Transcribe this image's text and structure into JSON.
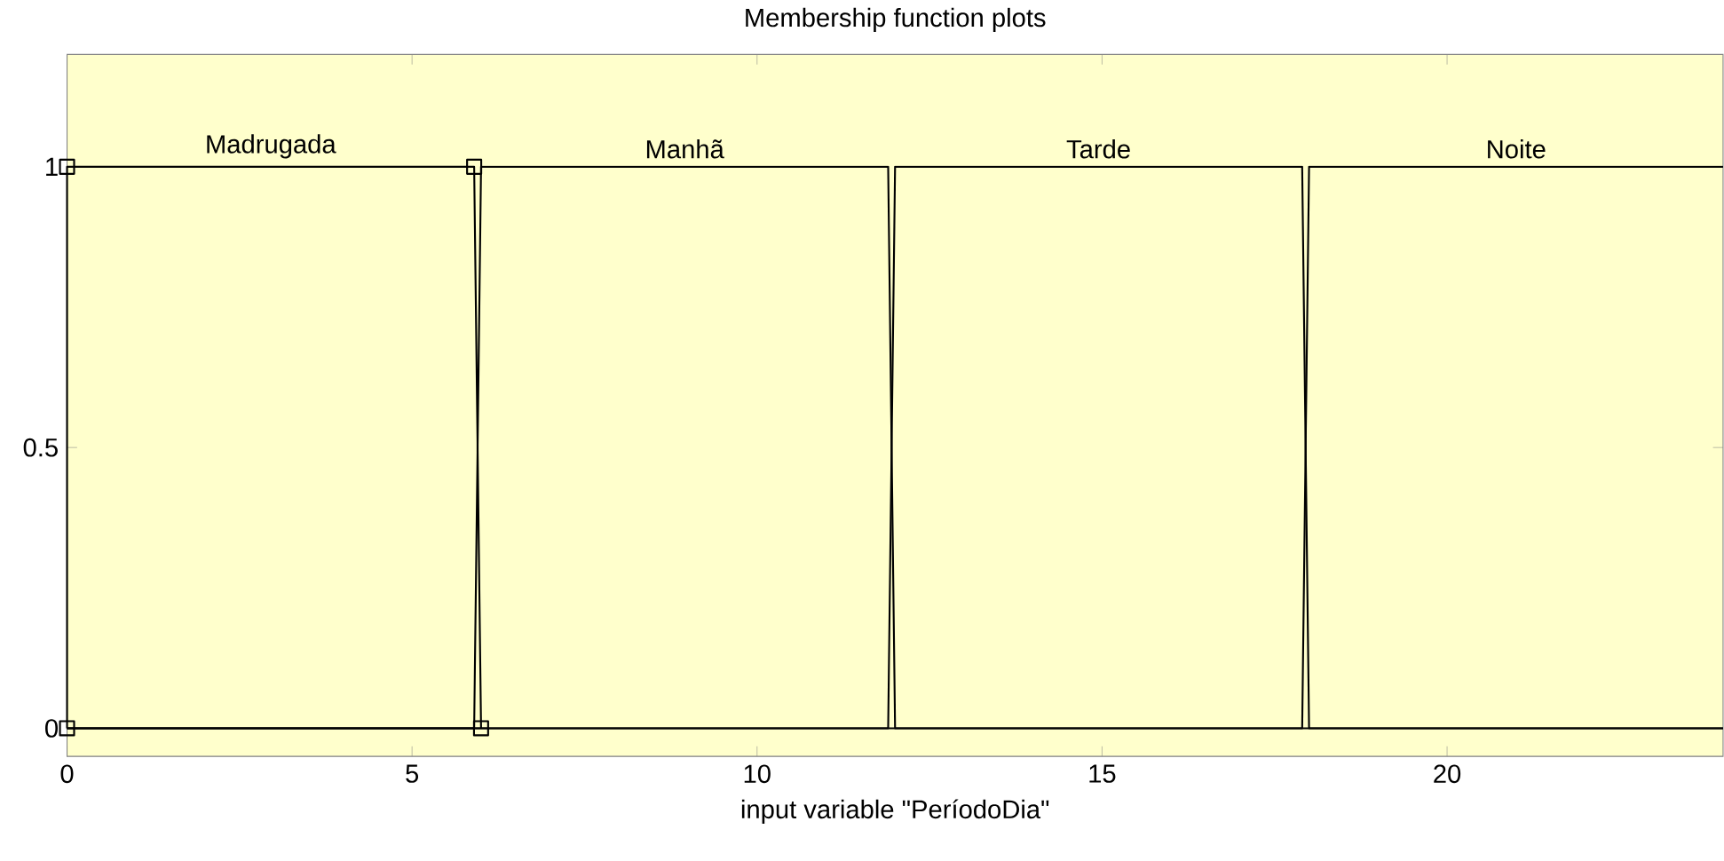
{
  "chart_data": {
    "type": "line",
    "title": "Membership function plots",
    "xlabel": "input variable \"PeríodoDia\"",
    "xlim": [
      0,
      24
    ],
    "ylim": [
      -0.05,
      1.2
    ],
    "xticks": [
      0,
      5,
      10,
      15,
      20
    ],
    "yticks": [
      0,
      0.5,
      1
    ],
    "grid": false,
    "series": [
      {
        "name": "Madrugada",
        "color": "#000000",
        "marker": "square",
        "x": [
          0,
          0,
          5.9,
          6
        ],
        "values": [
          0,
          1,
          1,
          0
        ]
      },
      {
        "name": "Manhã",
        "color": "#000000",
        "marker": "none",
        "x": [
          0,
          5.9,
          6,
          11.9,
          12,
          24
        ],
        "values": [
          0,
          0,
          1,
          1,
          0,
          0
        ]
      },
      {
        "name": "Tarde",
        "color": "#000000",
        "marker": "none",
        "x": [
          0,
          11.9,
          12,
          17.9,
          18,
          24
        ],
        "values": [
          0,
          0,
          1,
          1,
          0,
          0
        ]
      },
      {
        "name": "Noite",
        "color": "#000000",
        "marker": "none",
        "x": [
          0,
          17.9,
          18,
          24
        ],
        "values": [
          0,
          0,
          1,
          1
        ]
      }
    ]
  }
}
